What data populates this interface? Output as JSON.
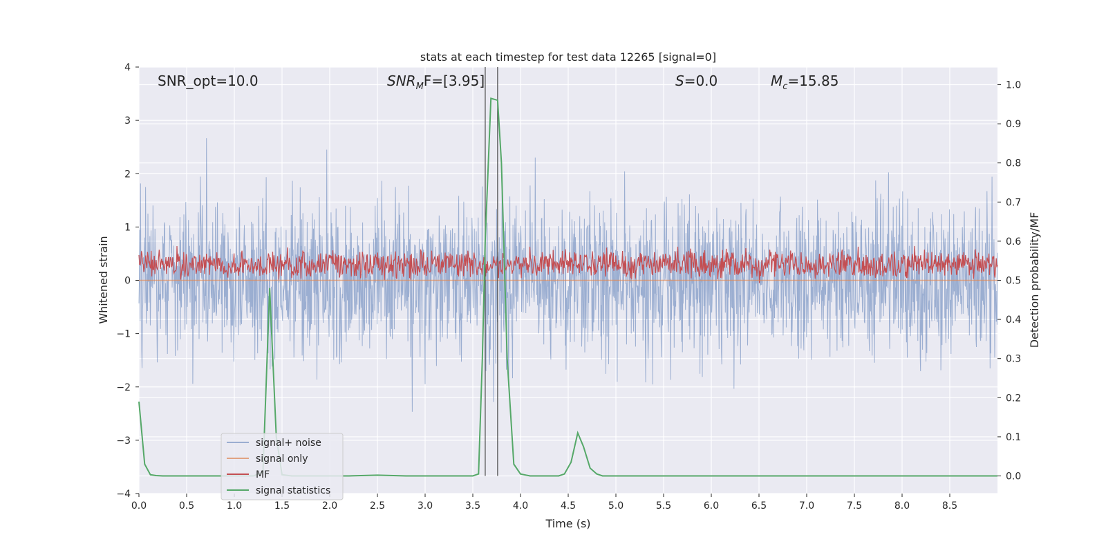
{
  "chart_data": {
    "type": "line",
    "title": "stats at each timestep for test data 12265 [signal=0]",
    "xlabel": "Time (s)",
    "ylabel_left": "Whitened strain",
    "ylabel_right": "Detection probability/MF",
    "xlim": [
      0,
      9
    ],
    "ylim_left": [
      -4.0,
      4.0
    ],
    "ylim_right": [
      -0.045,
      1.045
    ],
    "x_ticks": [
      "0.0",
      "0.5",
      "1.0",
      "1.5",
      "2.0",
      "2.5",
      "3.0",
      "3.5",
      "4.0",
      "4.5",
      "5.0",
      "5.5",
      "6.0",
      "6.5",
      "7.0",
      "7.5",
      "8.0",
      "8.5"
    ],
    "x_tick_values": [
      0,
      0.5,
      1,
      1.5,
      2,
      2.5,
      3,
      3.5,
      4,
      4.5,
      5,
      5.5,
      6,
      6.5,
      7,
      7.5,
      8,
      8.5
    ],
    "y_left_ticks": [
      "−4",
      "−3",
      "−2",
      "−1",
      "0",
      "1",
      "2",
      "3",
      "4"
    ],
    "y_left_tick_values": [
      -4,
      -3,
      -2,
      -1,
      0,
      1,
      2,
      3,
      4
    ],
    "y_right_ticks": [
      "0.0",
      "0.1",
      "0.2",
      "0.3",
      "0.4",
      "0.5",
      "0.6",
      "0.7",
      "0.8",
      "0.9",
      "1.0"
    ],
    "y_right_tick_values": [
      0,
      0.1,
      0.2,
      0.3,
      0.4,
      0.5,
      0.6,
      0.7,
      0.8,
      0.9,
      1.0
    ],
    "grid": true,
    "legend_position": "lower-left",
    "annotations": {
      "snr_opt": "SNR_opt=10.0",
      "snr_mf_base": "SNR",
      "snr_mf_sub": "M",
      "snr_mf_rest": "F=[3.95]",
      "s_label": "S",
      "s_value": "=0.0",
      "mc_base": "M",
      "mc_sub": "c",
      "mc_value": "=15.85"
    },
    "vertical_lines_x": [
      3.63,
      3.76
    ],
    "series": [
      {
        "name": "signal+ noise",
        "color": "#4c72b0",
        "axis": "left",
        "description_only": false,
        "noise_std": 0.72,
        "x_range": [
          0,
          9
        ],
        "n_points": 2200
      },
      {
        "name": "signal only",
        "color": "#dd8452",
        "axis": "left",
        "values_constant": 0.0
      },
      {
        "name": "MF",
        "color": "#c44e52",
        "axis": "left",
        "band_center": 0.3,
        "band_spread": 0.2,
        "n_points": 1400
      },
      {
        "name": "signal statistics",
        "color": "#55a868",
        "axis": "right",
        "x": [
          0.0,
          0.06,
          0.12,
          0.18,
          0.25,
          0.4,
          0.6,
          0.8,
          1.0,
          1.2,
          1.3,
          1.37,
          1.44,
          1.5,
          1.6,
          1.8,
          2.0,
          2.2,
          2.5,
          2.8,
          3.0,
          3.2,
          3.4,
          3.5,
          3.56,
          3.6,
          3.63,
          3.69,
          3.76,
          3.8,
          3.86,
          3.93,
          4.0,
          4.1,
          4.2,
          4.3,
          4.4,
          4.46,
          4.53,
          4.6,
          4.66,
          4.73,
          4.8,
          4.86,
          5.0,
          5.5,
          6.0,
          6.5,
          7.0,
          7.5,
          8.0,
          8.5,
          9.0
        ],
        "values": [
          0.19,
          0.03,
          0.003,
          0.001,
          0.0,
          0.0,
          0.0,
          0.0,
          0.0,
          0.0,
          0.01,
          0.48,
          0.1,
          0.003,
          0.0,
          0.0,
          0.0,
          0.0,
          0.002,
          0.0,
          0.0,
          0.0,
          0.0,
          0.0,
          0.005,
          0.3,
          0.6,
          0.965,
          0.96,
          0.8,
          0.3,
          0.03,
          0.005,
          0.0,
          0.0,
          0.0,
          0.0,
          0.005,
          0.035,
          0.11,
          0.075,
          0.02,
          0.005,
          0.0,
          0.0,
          0.0,
          0.0,
          0.0,
          0.0,
          0.0,
          0.0,
          0.0,
          0.0
        ]
      }
    ]
  }
}
